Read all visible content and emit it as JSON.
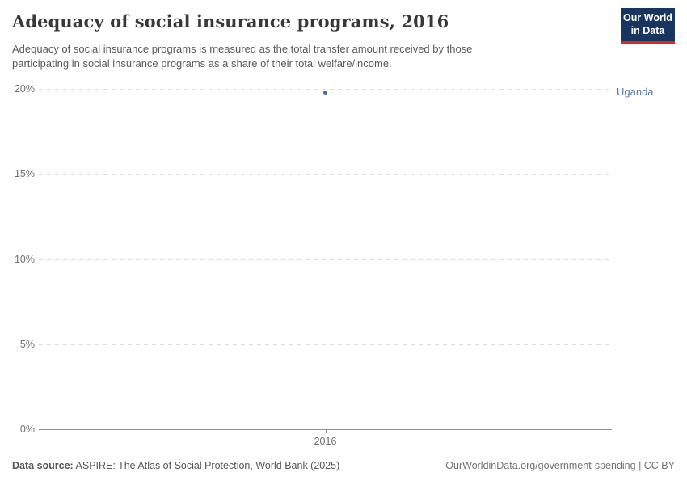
{
  "header": {
    "title": "Adequacy of social insurance programs, 2016",
    "subtitle": "Adequacy of social insurance programs is measured as the total transfer amount received by those\nparticipating in social insurance programs as a share of their total welfare/income.",
    "logo_line1": "Our World",
    "logo_line2": "in Data",
    "logo_bg_color": "#17355f",
    "logo_stripe_color": "#d42b21"
  },
  "chart_data": {
    "type": "scatter",
    "title": "Adequacy of social insurance programs, 2016",
    "xlabel": "",
    "ylabel": "",
    "ylim": [
      0,
      20
    ],
    "xlim": [
      2016,
      2016
    ],
    "grid": "horizontal-dashed",
    "legend_position": "right-of-point",
    "yticks": [
      {
        "value": 0,
        "label": "0%"
      },
      {
        "value": 5,
        "label": "5%"
      },
      {
        "value": 10,
        "label": "10%"
      },
      {
        "value": 15,
        "label": "15%"
      },
      {
        "value": 20,
        "label": "20%"
      }
    ],
    "xticks": [
      {
        "value": 2016,
        "label": "2016"
      }
    ],
    "series": [
      {
        "name": "Uganda",
        "x": [
          2016
        ],
        "y": [
          19.8
        ],
        "color": "#4C6A9C",
        "label_color": "#5878a8"
      }
    ]
  },
  "footer": {
    "source_label": "Data source:",
    "source_text": " ASPIRE: The Atlas of Social Protection, World Bank (2025)",
    "link_text": "OurWorldinData.org/government-spending | CC BY"
  }
}
